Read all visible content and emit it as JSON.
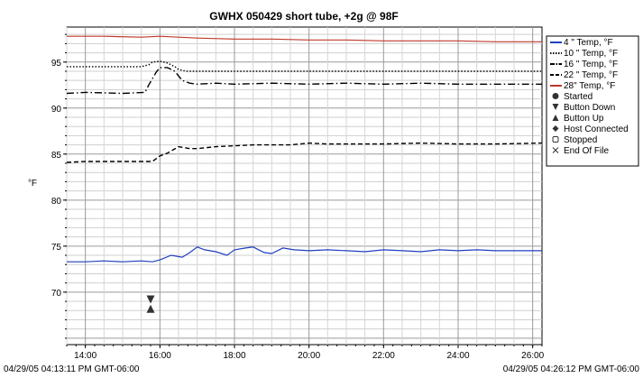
{
  "chart_data": {
    "type": "line",
    "title": "GWHX 050429 short tube, +2g @ 98F",
    "xlabel": "",
    "ylabel": "°F",
    "xlim": [
      13.5,
      26.25
    ],
    "ylim": [
      64.3,
      98.8
    ],
    "x_ticks": [
      {
        "value": 14,
        "label": "14:00"
      },
      {
        "value": 16,
        "label": "16:00"
      },
      {
        "value": 18,
        "label": "18:00"
      },
      {
        "value": 20,
        "label": "20:00"
      },
      {
        "value": 22,
        "label": "22:00"
      },
      {
        "value": 24,
        "label": "24:00"
      },
      {
        "value": 26,
        "label": "26:00"
      }
    ],
    "y_ticks": [
      70,
      75,
      80,
      85,
      90,
      95
    ],
    "grid": true,
    "legend_position": "right",
    "start_label": "04/29/05 04:13:11 PM GMT-06:00",
    "end_label": "04/29/05 04:26:12 PM GMT-06:00",
    "series": [
      {
        "name": "4 \" Temp, °F",
        "color": "#1f3fbf",
        "style": "solid",
        "x": [
          13.5,
          14.0,
          14.5,
          15.0,
          15.5,
          15.8,
          16.0,
          16.3,
          16.6,
          16.8,
          17.0,
          17.2,
          17.5,
          17.8,
          18.0,
          18.3,
          18.5,
          18.8,
          19.0,
          19.3,
          19.6,
          20.0,
          20.5,
          21.0,
          21.5,
          22.0,
          22.5,
          23.0,
          23.5,
          24.0,
          24.5,
          25.0,
          25.5,
          26.25
        ],
        "y": [
          73.3,
          73.3,
          73.4,
          73.3,
          73.4,
          73.3,
          73.5,
          74.0,
          73.8,
          74.3,
          74.9,
          74.6,
          74.4,
          74.0,
          74.6,
          74.8,
          74.9,
          74.3,
          74.2,
          74.8,
          74.6,
          74.5,
          74.6,
          74.5,
          74.4,
          74.6,
          74.5,
          74.4,
          74.6,
          74.5,
          74.6,
          74.5,
          74.5,
          74.5
        ]
      },
      {
        "name": "10 \" Temp, °F",
        "color": "#000000",
        "style": "dot",
        "x": [
          13.5,
          14.0,
          15.0,
          15.5,
          15.7,
          15.8,
          16.0,
          16.2,
          16.4,
          16.5,
          16.7,
          17.0,
          18.0,
          19.0,
          20.0,
          21.0,
          22.0,
          23.0,
          24.0,
          25.0,
          26.25
        ],
        "y": [
          94.5,
          94.5,
          94.5,
          94.5,
          94.7,
          95.0,
          95.1,
          94.9,
          94.5,
          94.2,
          94.0,
          94.0,
          94.0,
          94.0,
          94.0,
          94.0,
          94.0,
          94.0,
          94.0,
          94.0,
          94.0
        ]
      },
      {
        "name": "16 \" Temp, °F",
        "color": "#000000",
        "style": "dashdot",
        "x": [
          13.5,
          14.0,
          15.0,
          15.6,
          15.7,
          15.9,
          16.0,
          16.2,
          16.4,
          16.6,
          16.8,
          17.0,
          17.5,
          18.0,
          19.0,
          20.0,
          21.0,
          22.0,
          23.0,
          24.0,
          25.0,
          26.25
        ],
        "y": [
          91.6,
          91.7,
          91.6,
          91.7,
          92.5,
          93.9,
          94.4,
          94.4,
          94.0,
          93.0,
          92.7,
          92.6,
          92.7,
          92.6,
          92.7,
          92.6,
          92.7,
          92.6,
          92.7,
          92.6,
          92.6,
          92.6
        ]
      },
      {
        "name": "22 \" Temp, °F",
        "color": "#000000",
        "style": "dash",
        "x": [
          13.5,
          14.0,
          15.0,
          15.8,
          16.0,
          16.2,
          16.5,
          16.8,
          17.0,
          17.5,
          18.0,
          18.5,
          19.0,
          19.5,
          20.0,
          20.5,
          21.0,
          22.0,
          23.0,
          24.0,
          25.0,
          26.25
        ],
        "y": [
          84.1,
          84.2,
          84.2,
          84.2,
          84.8,
          85.1,
          85.8,
          85.6,
          85.6,
          85.8,
          85.9,
          86.0,
          86.0,
          86.0,
          86.2,
          86.1,
          86.1,
          86.1,
          86.2,
          86.1,
          86.1,
          86.2
        ]
      },
      {
        "name": "28\" Temp, °F",
        "color": "#c0392b",
        "style": "solid",
        "x": [
          13.5,
          14.5,
          15.5,
          16.0,
          16.5,
          17.0,
          18.0,
          19.0,
          20.0,
          21.0,
          22.0,
          23.0,
          24.0,
          25.0,
          26.25
        ],
        "y": [
          97.8,
          97.8,
          97.7,
          97.8,
          97.7,
          97.6,
          97.5,
          97.5,
          97.4,
          97.4,
          97.3,
          97.3,
          97.3,
          97.2,
          97.2
        ]
      }
    ],
    "event_types": [
      {
        "name": "Started",
        "marker": "circle"
      },
      {
        "name": "Button Down",
        "marker": "triangle-down"
      },
      {
        "name": "Button Up",
        "marker": "triangle-up"
      },
      {
        "name": "Host Connected",
        "marker": "diamond"
      },
      {
        "name": "Stopped",
        "marker": "square-open"
      },
      {
        "name": "End Of File",
        "marker": "x"
      }
    ],
    "events": [
      {
        "type": "Button Down",
        "x": 15.75,
        "y": 69.2
      },
      {
        "type": "Button Up",
        "x": 15.75,
        "y": 68.2
      }
    ]
  }
}
